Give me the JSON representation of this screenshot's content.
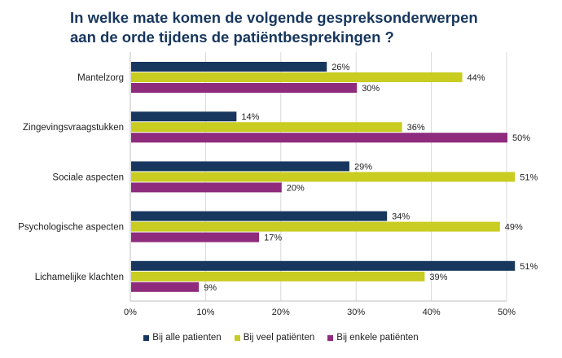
{
  "chart_data": {
    "type": "bar",
    "orientation": "horizontal",
    "title_lines": [
      "In welke mate komen de volgende gespreksonderwerpen",
      "aan de orde tijdens de patiëntbesprekingen ?"
    ],
    "categories": [
      "Mantelzorg",
      "Zingevingsvraagstukken",
      "Sociale aspecten",
      "Psychologische aspecten",
      "Lichamelijke klachten"
    ],
    "series": [
      {
        "name": "Bij alle patienten",
        "color": "#17375e",
        "values": [
          26,
          14,
          29,
          34,
          51
        ],
        "labels": [
          "26%",
          "14%",
          "29%",
          "34%",
          "51%"
        ]
      },
      {
        "name": "Bij veel patiënten",
        "color": "#c9cc21",
        "values": [
          44,
          36,
          51,
          49,
          39
        ],
        "labels": [
          "44%",
          "36%",
          "51%",
          "49%",
          "39%"
        ]
      },
      {
        "name": "Bij enkele patiënten",
        "color": "#8e2b7d",
        "values": [
          30,
          50,
          20,
          17,
          9
        ],
        "labels": [
          "30%",
          "50%",
          "20%",
          "17%",
          "9%"
        ]
      }
    ],
    "xlim": [
      0,
      50
    ],
    "x_ticks": [
      "0%",
      "10%",
      "20%",
      "30%",
      "40%",
      "50%"
    ],
    "x_tick_values": [
      0,
      10,
      20,
      30,
      40,
      50
    ],
    "grid": true,
    "legend_position": "bottom"
  }
}
